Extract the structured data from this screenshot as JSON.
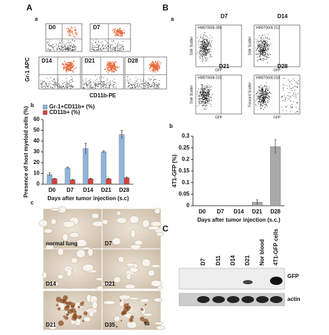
{
  "panel_labels": [
    "A",
    "a",
    "b",
    "B",
    "a",
    "b",
    "c",
    "C"
  ],
  "flow_a": {
    "y_label": "Gr-1 APC",
    "x_label": "CD11b-PE",
    "plots": [
      "D0",
      "D7",
      "D14",
      "D21",
      "D28"
    ]
  },
  "flow_b": {
    "plots": [
      {
        "day": "D7",
        "id": "HM070606.008",
        "y_label": "Side Scatter",
        "x_label": "GFP"
      },
      {
        "day": "D14",
        "id": "HM070606.012",
        "y_label": "Side Scatter",
        "x_label": "GFP"
      },
      {
        "day": "D21",
        "id": "HM070606.015",
        "y_label": "Side Scatter",
        "x_label": "GFP"
      },
      {
        "day": "D28",
        "id": "HM070606.018",
        "y_label": "Forward Scatter",
        "x_label": "GFP"
      }
    ]
  },
  "chart_data": [
    {
      "type": "bar",
      "ylabel": "Presence of host myeloid cells (%)",
      "xlabel": "Days after tumor injection (s.c)",
      "categories": [
        "D0",
        "D7",
        "D14",
        "D21",
        "D28"
      ],
      "series": [
        {
          "name": "Gr-1+CD11b+ (%)",
          "color": "#8fb6dc",
          "values": [
            9,
            15,
            33,
            30,
            46
          ],
          "errors": [
            1.5,
            1,
            5,
            1,
            4
          ]
        },
        {
          "name": "CD11b+ (%)",
          "color": "#d9403a",
          "values": [
            5,
            4,
            5,
            5,
            6
          ],
          "errors": [
            0.5,
            0.5,
            0.5,
            0.5,
            0.5
          ]
        }
      ],
      "ylim": [
        0,
        60
      ],
      "yticks": [
        0,
        10,
        20,
        30,
        40,
        50,
        60
      ]
    },
    {
      "type": "bar",
      "ylabel": "4T1-GFP (%)",
      "xlabel": "Days after tumor injection (s.c.)",
      "categories": [
        "D0",
        "D7",
        "D14",
        "D21",
        "D28"
      ],
      "series": [
        {
          "color": "#a9a9a9",
          "values": [
            0,
            0.001,
            0.001,
            0.015,
            0.255
          ],
          "errors": [
            0,
            0,
            0,
            0.01,
            0.03
          ]
        }
      ],
      "ylim": [
        0,
        0.3
      ],
      "yticks": [
        0,
        0.05,
        0.1,
        0.15,
        0.2,
        0.25,
        0.3
      ]
    }
  ],
  "histology": {
    "labels": [
      "normal lung",
      "D7",
      "D14",
      "D21",
      "D21",
      "D35"
    ],
    "annotation": "tu"
  },
  "blot": {
    "lanes": [
      "D7",
      "D11",
      "D14",
      "D21",
      "Nor blood",
      "4T1-GFP cells"
    ],
    "rows": [
      "GFP",
      "actin"
    ]
  }
}
